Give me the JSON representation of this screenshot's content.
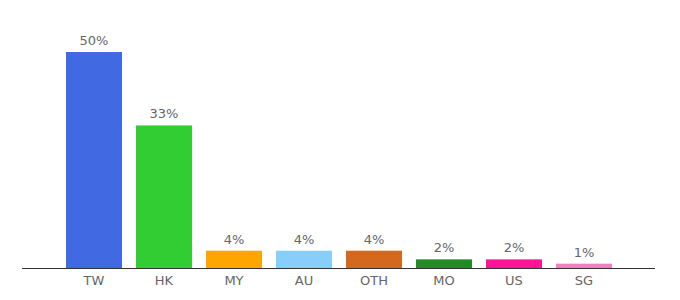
{
  "chart_data": {
    "type": "bar",
    "categories": [
      "TW",
      "HK",
      "MY",
      "AU",
      "OTH",
      "MO",
      "US",
      "SG"
    ],
    "values": [
      50,
      33,
      4,
      4,
      4,
      2,
      2,
      1
    ],
    "value_labels": [
      "50%",
      "33%",
      "4%",
      "4%",
      "4%",
      "2%",
      "2%",
      "1%"
    ],
    "colors": [
      "#4169e1",
      "#32cd32",
      "#ffa500",
      "#87cefa",
      "#d2691e",
      "#228b22",
      "#ff1493",
      "#f080c0"
    ],
    "ylim": [
      0,
      50
    ],
    "data_labels": true,
    "tick_labels": "x",
    "grid": false
  }
}
